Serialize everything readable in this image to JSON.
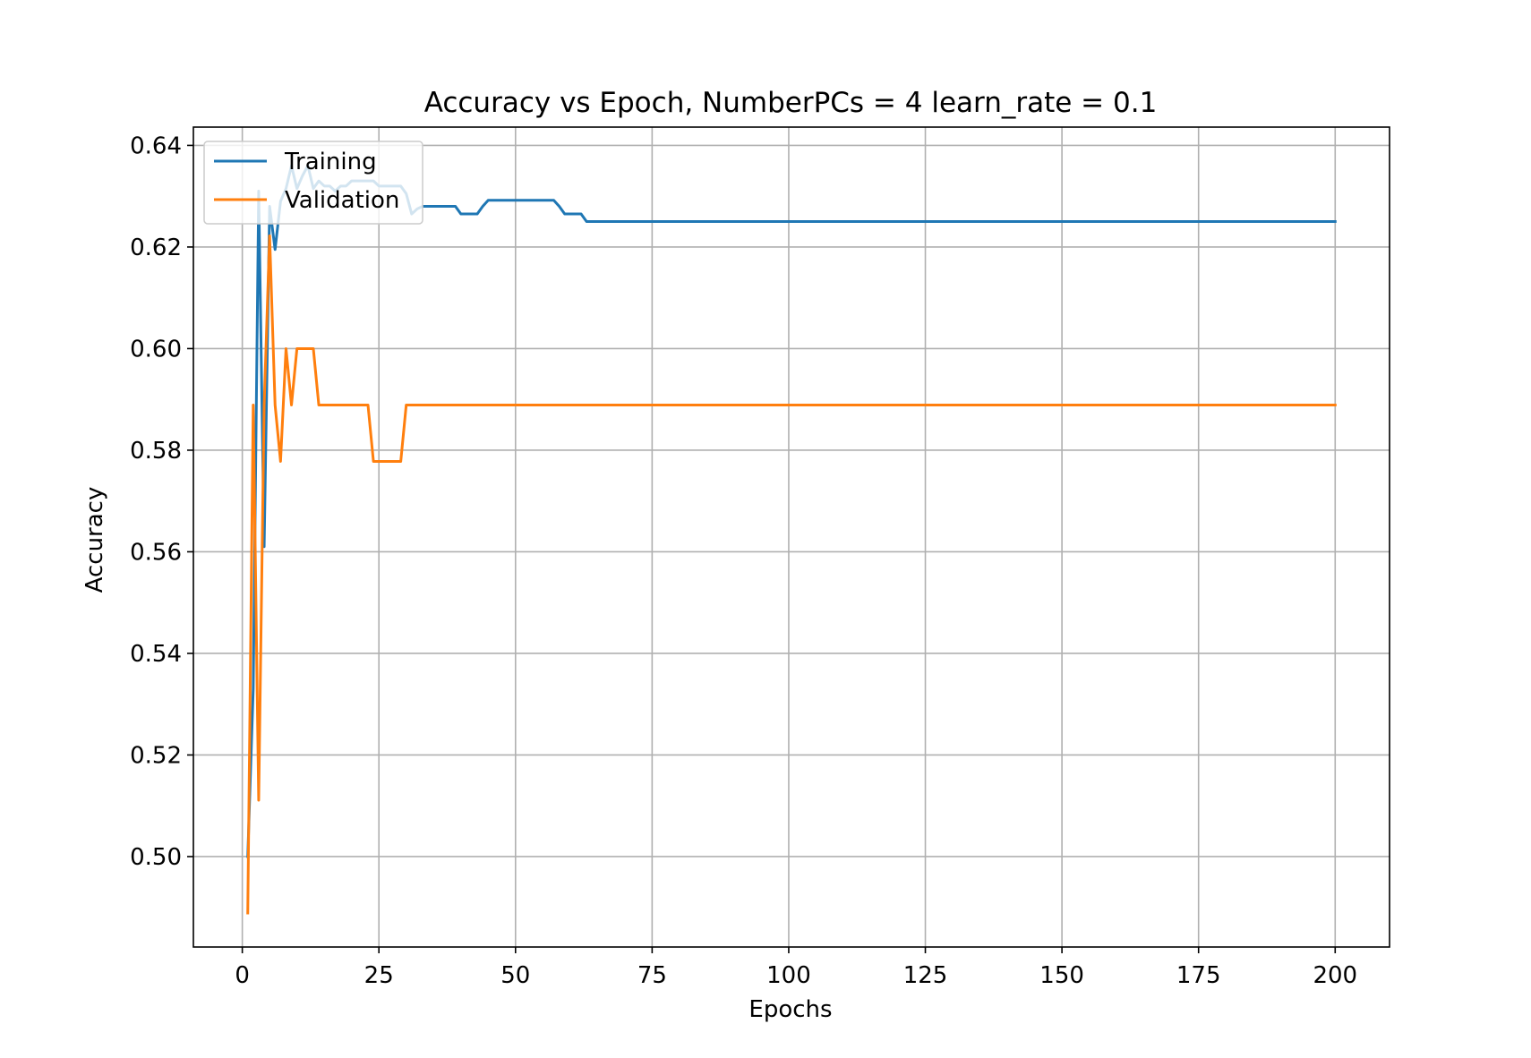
{
  "chart_data": {
    "type": "line",
    "title": "Accuracy vs Epoch, NumberPCs = 4 learn_rate = 0.1",
    "xlabel": "Epochs",
    "ylabel": "Accuracy",
    "xlim": [
      -8.95,
      209.95
    ],
    "ylim": [
      0.4822,
      0.6436
    ],
    "xticks": [
      0,
      25,
      50,
      75,
      100,
      125,
      150,
      175,
      200
    ],
    "xtick_labels": [
      "0",
      "25",
      "50",
      "75",
      "100",
      "125",
      "150",
      "175",
      "200"
    ],
    "yticks": [
      0.5,
      0.52,
      0.54,
      0.56,
      0.58,
      0.6,
      0.62,
      0.64
    ],
    "ytick_labels": [
      "0.50",
      "0.52",
      "0.54",
      "0.56",
      "0.58",
      "0.60",
      "0.62",
      "0.64"
    ],
    "grid": true,
    "legend_position": "top-left",
    "series": [
      {
        "name": "Training",
        "color": "#1f77b4",
        "x": [
          1,
          2,
          3,
          4,
          5,
          6,
          7,
          8,
          9,
          10,
          11,
          12,
          13,
          14,
          15,
          16,
          17,
          18,
          19,
          20,
          21,
          22,
          23,
          24,
          25,
          26,
          27,
          28,
          29,
          30,
          31,
          32,
          33,
          34,
          35,
          36,
          37,
          38,
          39,
          40,
          41,
          42,
          43,
          44,
          45,
          46,
          47,
          48,
          49,
          50,
          51,
          52,
          53,
          54,
          55,
          56,
          57,
          58,
          59,
          60,
          61,
          62,
          63,
          200
        ],
        "y": [
          0.5,
          0.533,
          0.631,
          0.561,
          0.628,
          0.6195,
          0.629,
          0.6315,
          0.636,
          0.6315,
          0.634,
          0.636,
          0.6315,
          0.633,
          0.632,
          0.632,
          0.631,
          0.632,
          0.632,
          0.633,
          0.633,
          0.633,
          0.633,
          0.633,
          0.632,
          0.632,
          0.632,
          0.632,
          0.632,
          0.6305,
          0.6265,
          0.6275,
          0.628,
          0.628,
          0.628,
          0.628,
          0.628,
          0.628,
          0.628,
          0.6265,
          0.6265,
          0.6265,
          0.6265,
          0.628,
          0.6292,
          0.6292,
          0.6292,
          0.6292,
          0.6292,
          0.6292,
          0.6292,
          0.6292,
          0.6292,
          0.6292,
          0.6292,
          0.6292,
          0.6292,
          0.628,
          0.6265,
          0.6265,
          0.6265,
          0.6265,
          0.625,
          0.625
        ]
      },
      {
        "name": "Validation",
        "color": "#ff7f0e",
        "x": [
          1,
          2,
          3,
          4,
          5,
          6,
          7,
          8,
          9,
          10,
          11,
          12,
          13,
          14,
          15,
          16,
          17,
          18,
          19,
          20,
          21,
          22,
          23,
          24,
          25,
          26,
          27,
          28,
          29,
          30,
          200
        ],
        "y": [
          0.4889,
          0.5889,
          0.5111,
          0.5889,
          0.6222,
          0.5889,
          0.5778,
          0.6,
          0.5889,
          0.6,
          0.6,
          0.6,
          0.6,
          0.5889,
          0.5889,
          0.5889,
          0.5889,
          0.5889,
          0.5889,
          0.5889,
          0.5889,
          0.5889,
          0.5889,
          0.5778,
          0.5778,
          0.5778,
          0.5778,
          0.5778,
          0.5778,
          0.5889,
          0.5889
        ]
      }
    ]
  }
}
